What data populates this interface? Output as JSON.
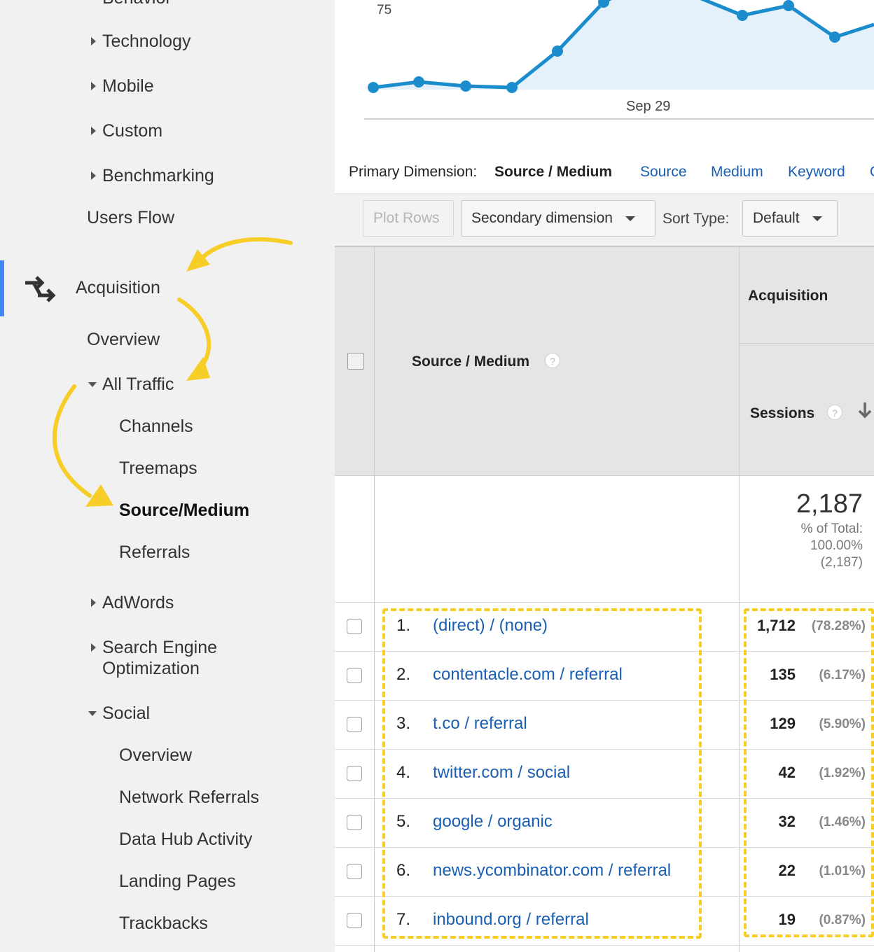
{
  "sidebar": {
    "partial_item": "Behavior",
    "items": {
      "technology": "Technology",
      "mobile": "Mobile",
      "custom": "Custom",
      "benchmarking": "Benchmarking",
      "users_flow": "Users Flow",
      "acquisition": "Acquisition",
      "overview": "Overview",
      "all_traffic": "All Traffic",
      "channels": "Channels",
      "treemaps": "Treemaps",
      "source_medium": "Source/Medium",
      "referrals": "Referrals",
      "adwords": "AdWords",
      "seo_line1": "Search Engine",
      "seo_line2": "Optimization",
      "social": "Social",
      "social_overview": "Overview",
      "network_referrals": "Network Referrals",
      "data_hub_activity": "Data Hub Activity",
      "landing_pages": "Landing Pages",
      "trackbacks": "Trackbacks"
    }
  },
  "chart": {
    "y_tick": "75",
    "x_tick": "Sep 29",
    "line_color": "#1b8dcc",
    "fill_color": "#e5f1fa"
  },
  "dimension_bar": {
    "label": "Primary Dimension:",
    "current": "Source / Medium",
    "links": [
      "Source",
      "Medium",
      "Keyword"
    ]
  },
  "toolbar": {
    "plot_rows": "Plot Rows",
    "secondary_dimension": "Secondary dimension",
    "sort_type_label": "Sort Type:",
    "sort_type_value": "Default"
  },
  "table": {
    "header": {
      "dimension": "Source / Medium",
      "group": "Acquisition",
      "metric": "Sessions",
      "help": "?"
    },
    "totals": {
      "sessions": "2,187",
      "pct_label": "% of Total:",
      "pct_value": "100.00%",
      "pct_abs": "(2,187)"
    },
    "rows": [
      {
        "num": "1.",
        "source": "(direct) / (none)",
        "sessions": "1,712",
        "pct": "(78.28%)"
      },
      {
        "num": "2.",
        "source": "contentacle.com / referral",
        "sessions": "135",
        "pct": "(6.17%)"
      },
      {
        "num": "3.",
        "source": "t.co / referral",
        "sessions": "129",
        "pct": "(5.90%)"
      },
      {
        "num": "4.",
        "source": "twitter.com / social",
        "sessions": "42",
        "pct": "(1.92%)"
      },
      {
        "num": "5.",
        "source": "google / organic",
        "sessions": "32",
        "pct": "(1.46%)"
      },
      {
        "num": "6.",
        "source": "news.ycombinator.com / referral",
        "sessions": "22",
        "pct": "(1.01%)"
      },
      {
        "num": "7.",
        "source": "inbound.org / referral",
        "sessions": "19",
        "pct": "(0.87%)"
      }
    ]
  },
  "annotations": {
    "highlight_color": "#f7cd27"
  }
}
